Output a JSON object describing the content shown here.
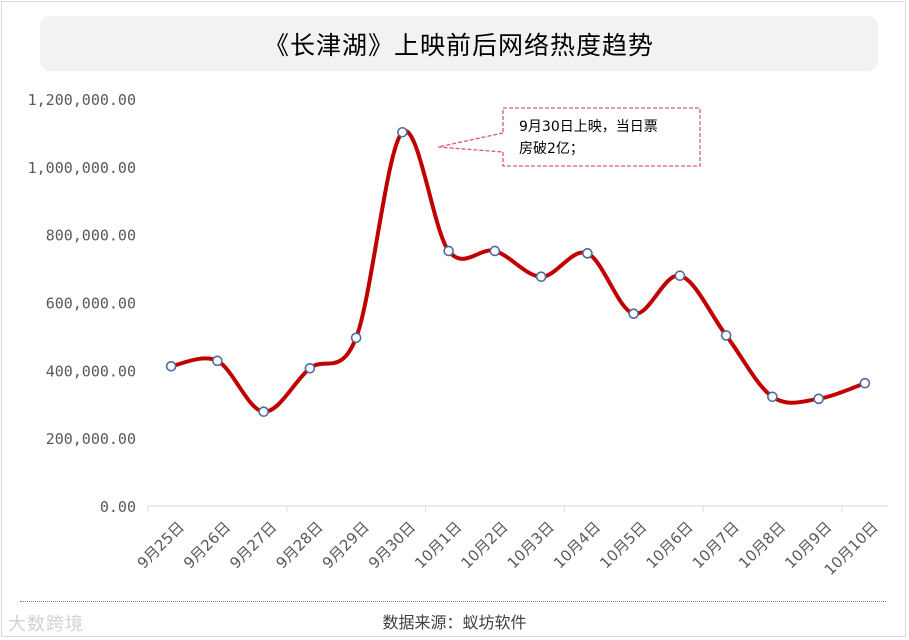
{
  "chart_data": {
    "type": "line",
    "title": "《长津湖》上映前后网络热度趋势",
    "categories": [
      "9月25日",
      "9月26日",
      "9月27日",
      "9月28日",
      "9月29日",
      "9月30日",
      "10月1日",
      "10月2日",
      "10月3日",
      "10月4日",
      "10月5日",
      "10月6日",
      "10月7日",
      "10月8日",
      "10月9日",
      "10月10日"
    ],
    "series": [
      {
        "values": [
          412000,
          428000,
          278000,
          406000,
          496000,
          1102000,
          752000,
          752000,
          676000,
          745000,
          567000,
          679000,
          503000,
          322000,
          316000,
          362000
        ]
      }
    ],
    "ylim": [
      0,
      1200000
    ],
    "yticks": [
      0,
      200000,
      400000,
      600000,
      800000,
      1000000,
      1200000
    ],
    "ytick_labels": [
      "0.00",
      "200,000.00",
      "400,000.00",
      "600,000.00",
      "800,000.00",
      "1,000,000.00",
      "1,200,000.00"
    ],
    "line_color": "#c00000",
    "marker_edge_color": "#4f6d9c",
    "smooth": true,
    "grid": false,
    "annotation": {
      "lines": [
        "9月30日上映，当日票",
        "房破2亿；"
      ],
      "target": "9月30日"
    }
  },
  "footer": {
    "source": "数据来源：蚁坊软件",
    "watermark": "大数跨境"
  }
}
